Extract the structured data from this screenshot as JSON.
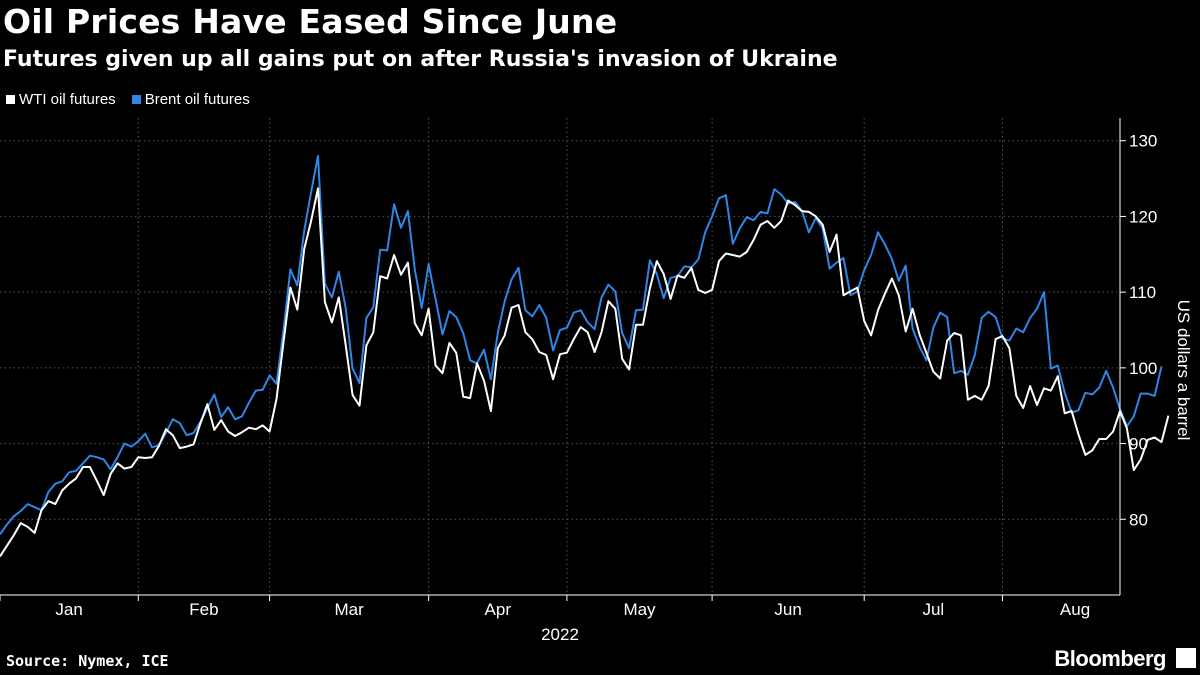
{
  "chart_data": {
    "type": "line",
    "title": "Oil Prices Have Eased Since June",
    "subtitle": "Futures given up all gains put on after Russia's invasion of Ukraine",
    "ylabel": "US dollars a barrel",
    "xlabel": "2022",
    "ylim": [
      70,
      133
    ],
    "yticks": [
      80,
      90,
      100,
      110,
      120,
      130
    ],
    "grid": true,
    "legend_position": "top-left",
    "x_unit": "trading day index from Jan 3, 2022",
    "x_range": [
      0,
      162
    ],
    "month_ticks": [
      {
        "label": "Jan",
        "pos": 0
      },
      {
        "label": "Feb",
        "pos": 20
      },
      {
        "label": "Mar",
        "pos": 39
      },
      {
        "label": "Apr",
        "pos": 62
      },
      {
        "label": "May",
        "pos": 82
      },
      {
        "label": "Jun",
        "pos": 103
      },
      {
        "label": "Jul",
        "pos": 125
      },
      {
        "label": "Aug",
        "pos": 145
      }
    ],
    "series": [
      {
        "name": "WTI oil futures",
        "color": "#ffffff",
        "values": [
          75.1,
          76.5,
          77.9,
          79.5,
          79.0,
          78.2,
          81.2,
          82.4,
          82.0,
          83.8,
          84.7,
          85.4,
          86.9,
          86.9,
          85.1,
          83.2,
          86.0,
          87.4,
          86.7,
          86.9,
          88.2,
          88.1,
          88.2,
          89.7,
          91.9,
          91.1,
          89.4,
          89.6,
          89.9,
          92.7,
          95.2,
          91.8,
          93.1,
          91.6,
          91.0,
          91.5,
          92.1,
          91.9,
          92.4,
          91.6,
          95.9,
          103.4,
          110.6,
          107.7,
          115.7,
          119.4,
          123.7,
          108.7,
          106.0,
          109.3,
          103.0,
          96.4,
          95.0,
          102.98,
          104.7,
          112.1,
          111.8,
          114.9,
          112.3,
          113.9,
          105.9,
          104.3,
          107.8,
          100.3,
          99.3,
          103.3,
          101.96,
          96.2,
          96.0,
          100.6,
          98.3,
          94.3,
          102.6,
          104.3,
          107.95,
          108.3,
          104.7,
          103.79,
          102.1,
          101.7,
          98.5,
          101.8,
          102.0,
          103.8,
          105.4,
          104.7,
          102.1,
          104.7,
          108.8,
          107.8,
          101.2,
          99.8,
          105.7,
          105.7,
          110.5,
          114.1,
          112.4,
          109.1,
          112.2,
          111.9,
          113.2,
          110.3,
          109.9,
          110.3,
          114.1,
          115.1,
          114.9,
          114.7,
          115.3,
          116.9,
          118.9,
          119.4,
          118.5,
          119.4,
          122.1,
          121.5,
          120.7,
          120.6,
          120.0,
          118.9,
          115.3,
          117.6,
          109.6,
          110.1,
          110.6,
          106.2,
          104.3,
          107.6,
          109.8,
          111.8,
          109.6,
          104.8,
          107.8,
          104.4,
          101.98,
          99.5,
          98.6,
          103.6,
          104.6,
          104.3,
          95.8,
          96.3,
          95.8,
          97.6,
          103.8,
          104.2,
          102.6,
          96.3,
          94.7,
          97.6,
          95.1,
          97.3,
          97.0,
          98.9,
          94.0,
          94.3,
          91.2,
          88.5,
          89.1,
          90.6,
          90.6,
          91.6,
          94.3,
          92.0,
          86.5,
          87.9,
          90.5,
          90.8,
          90.2,
          93.7
        ]
      },
      {
        "name": "Brent oil futures",
        "color": "#2f86e6",
        "values": [
          78.0,
          79.3,
          80.4,
          81.1,
          82.0,
          81.6,
          81.2,
          83.6,
          84.7,
          85.0,
          86.2,
          86.4,
          87.4,
          88.4,
          88.2,
          87.9,
          86.6,
          88.2,
          90.0,
          89.6,
          90.3,
          91.3,
          89.5,
          89.8,
          91.4,
          93.2,
          92.7,
          91.1,
          91.4,
          92.9,
          94.7,
          96.5,
          93.5,
          94.8,
          93.2,
          93.6,
          95.4,
          97.0,
          97.1,
          99.0,
          97.9,
          105.0,
          113.0,
          110.9,
          118.1,
          123.2,
          127.98,
          111.1,
          109.3,
          112.7,
          107.9,
          99.9,
          98.0,
          106.6,
          108.0,
          115.6,
          115.5,
          121.6,
          118.5,
          120.7,
          113.0,
          107.9,
          113.7,
          109.1,
          104.4,
          107.5,
          106.7,
          104.6,
          101.0,
          100.6,
          102.4,
          98.5,
          104.6,
          108.8,
          111.7,
          113.2,
          107.6,
          106.8,
          108.3,
          106.6,
          102.3,
          105.0,
          105.3,
          107.3,
          107.6,
          106.0,
          105.1,
          109.3,
          111.0,
          110.1,
          104.6,
          102.6,
          107.6,
          107.7,
          114.2,
          112.4,
          109.2,
          111.9,
          112.1,
          113.4,
          113.3,
          114.3,
          117.9,
          120.0,
          122.4,
          122.8,
          116.4,
          118.4,
          119.9,
          119.5,
          120.6,
          120.4,
          123.6,
          122.9,
          121.7,
          121.9,
          120.7,
          117.9,
          119.8,
          118.4,
          113.1,
          113.9,
          114.5,
          109.6,
          110.1,
          112.9,
          114.9,
          117.9,
          116.3,
          114.4,
          111.5,
          113.5,
          105.2,
          102.8,
          101.0,
          105.3,
          107.3,
          106.7,
          99.3,
          99.6,
          99.1,
          101.7,
          106.6,
          107.4,
          106.7,
          103.9,
          103.6,
          105.2,
          104.7,
          106.6,
          107.8,
          110.0,
          99.9,
          100.3,
          96.7,
          94.1,
          94.4,
          96.7,
          96.5,
          97.4,
          99.6,
          97.4,
          94.5,
          92.3,
          93.6,
          96.6,
          96.6,
          96.3,
          100.2
        ]
      }
    ]
  },
  "footer": {
    "source": "Source: Nymex, ICE",
    "brand": "Bloomberg"
  },
  "colors": {
    "background": "#000000",
    "wti": "#ffffff",
    "brent": "#2f86e6",
    "grid": "#555555"
  }
}
